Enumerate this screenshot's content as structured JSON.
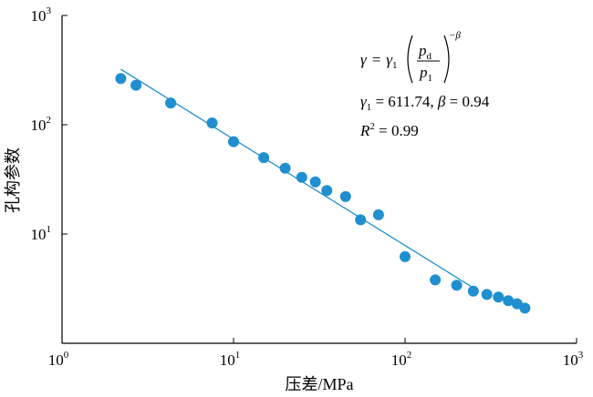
{
  "chart_data": {
    "type": "scatter",
    "xlabel": "压差/MPa",
    "ylabel": "孔构参数",
    "x_scale": "log",
    "y_scale": "log",
    "xlim": [
      1,
      1000
    ],
    "ylim": [
      1,
      1000
    ],
    "grid": false,
    "x_ticks": [
      {
        "value": 1,
        "base": "10",
        "exp": "0"
      },
      {
        "value": 10,
        "base": "10",
        "exp": "1"
      },
      {
        "value": 100,
        "base": "10",
        "exp": "2"
      },
      {
        "value": 1000,
        "base": "10",
        "exp": "3"
      }
    ],
    "y_ticks": [
      {
        "value": 10,
        "base": "10",
        "exp": "1"
      },
      {
        "value": 100,
        "base": "10",
        "exp": "2"
      },
      {
        "value": 1000,
        "base": "10",
        "exp": "3"
      }
    ],
    "points": [
      {
        "x": 2.2,
        "y": 265
      },
      {
        "x": 2.7,
        "y": 230
      },
      {
        "x": 4.3,
        "y": 158
      },
      {
        "x": 7.5,
        "y": 104
      },
      {
        "x": 10,
        "y": 70
      },
      {
        "x": 15,
        "y": 50
      },
      {
        "x": 20,
        "y": 40
      },
      {
        "x": 25,
        "y": 33
      },
      {
        "x": 30,
        "y": 30
      },
      {
        "x": 35,
        "y": 25
      },
      {
        "x": 45,
        "y": 22
      },
      {
        "x": 55,
        "y": 13.5
      },
      {
        "x": 70,
        "y": 15
      },
      {
        "x": 100,
        "y": 6.2
      },
      {
        "x": 150,
        "y": 3.8
      },
      {
        "x": 200,
        "y": 3.4
      },
      {
        "x": 250,
        "y": 3.0
      },
      {
        "x": 300,
        "y": 2.8
      },
      {
        "x": 350,
        "y": 2.65
      },
      {
        "x": 400,
        "y": 2.45
      },
      {
        "x": 450,
        "y": 2.3
      },
      {
        "x": 500,
        "y": 2.1
      }
    ],
    "fit": {
      "x": [
        2.2,
        260
      ],
      "y": [
        322,
        3.1
      ]
    },
    "equation": {
      "gamma": "γ",
      "gamma1": "γ",
      "sub1": "1",
      "pd": "p",
      "pd_sub": "d",
      "pl": "p",
      "pl_sub": "1",
      "beta_exp": "−β",
      "eq_sign": "=",
      "eq2_tail": " = 611.74, ",
      "beta": "β",
      "eq2_end": " = 0.94",
      "r": "R",
      "r_exp": "2",
      "r_tail": " = 0.99"
    },
    "colors": {
      "points": "#1f8fcf",
      "fit": "#1f8fcf"
    }
  }
}
